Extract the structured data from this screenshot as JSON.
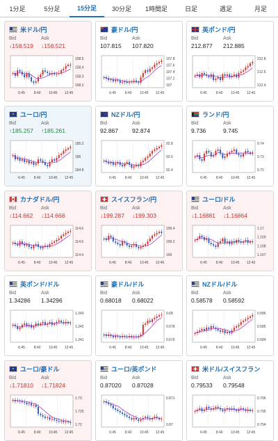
{
  "tabs": [
    "1分足",
    "5分足",
    "15分足",
    "30分足",
    "1時間足",
    "日足",
    "週足",
    "月足"
  ],
  "active_tab": 2,
  "quote_labels": {
    "bid": "Bid",
    "ask": "Ask"
  },
  "x_ticks": [
    "6:45",
    "8:40",
    "10:45",
    "12:45"
  ],
  "colors": {
    "rise": "#d0312d",
    "fall": "#2f5fb8",
    "avg": "#a13ec4",
    "up_text": "#208a39",
    "down_text": "#c8322f"
  },
  "cards": [
    {
      "pair": "米ドル/円",
      "flag": "us",
      "dir": "down",
      "bid": "↓158.519",
      "ask": "↓158.521",
      "yticks": [
        "158.5",
        "158.4",
        "158.3",
        "158.2"
      ],
      "shape": [
        0.45,
        0.35,
        0.55,
        0.5,
        0.4,
        0.3,
        0.45,
        0.3,
        0.15,
        0.1,
        0.15,
        0.3,
        0.4,
        0.55,
        0.5,
        0.45,
        0.4,
        0.45,
        0.4,
        0.42,
        0.45,
        0.55,
        0.6,
        0.7,
        0.75,
        0.72
      ]
    },
    {
      "pair": "豪ドル/円",
      "flag": "au",
      "dir": "none",
      "bid": "107.815",
      "ask": "107.820",
      "yticks": [
        "107.8",
        "107.6",
        "107.4",
        "107.2",
        "107"
      ],
      "shape": [
        0.3,
        0.25,
        0.2,
        0.22,
        0.15,
        0.2,
        0.18,
        0.1,
        0.12,
        0.15,
        0.1,
        0.12,
        0.15,
        0.18,
        0.12,
        0.1,
        0.3,
        0.45,
        0.55,
        0.5,
        0.6,
        0.65,
        0.75,
        0.8,
        0.85,
        0.9
      ]
    },
    {
      "pair": "英ポンド/円",
      "flag": "uk",
      "dir": "none",
      "bid": "212.877",
      "ask": "212.885",
      "yticks": [
        "212.8",
        "212.6",
        "212.4"
      ],
      "shape": [
        0.35,
        0.4,
        0.3,
        0.45,
        0.4,
        0.35,
        0.3,
        0.4,
        0.2,
        0.25,
        0.3,
        0.2,
        0.4,
        0.35,
        0.4,
        0.3,
        0.35,
        0.4,
        0.3,
        0.45,
        0.5,
        0.55,
        0.65,
        0.7,
        0.8,
        0.85
      ]
    },
    {
      "pair": "ユーロ/円",
      "flag": "eu",
      "dir": "up",
      "bid": "↑185.257",
      "ask": "↑185.261",
      "yticks": [
        "185.2",
        "185",
        "184.8"
      ],
      "shape": [
        0.55,
        0.4,
        0.45,
        0.35,
        0.4,
        0.3,
        0.35,
        0.25,
        0.3,
        0.2,
        0.25,
        0.4,
        0.35,
        0.3,
        0.2,
        0.15,
        0.3,
        0.4,
        0.35,
        0.45,
        0.55,
        0.6,
        0.7,
        0.75,
        0.8,
        0.85
      ]
    },
    {
      "pair": "NZドル/円",
      "flag": "nz",
      "dir": "none",
      "bid": "92.867",
      "ask": "92.874",
      "yticks": [
        "92.8",
        "92.6",
        "92.4"
      ],
      "shape": [
        0.35,
        0.3,
        0.25,
        0.3,
        0.2,
        0.25,
        0.3,
        0.2,
        0.15,
        0.25,
        0.3,
        0.2,
        0.1,
        0.15,
        0.2,
        0.15,
        0.3,
        0.35,
        0.45,
        0.5,
        0.6,
        0.7,
        0.75,
        0.8,
        0.85,
        0.9
      ]
    },
    {
      "pair": "ランド/円",
      "flag": "za",
      "dir": "none",
      "bid": "9.736",
      "ask": "9.745",
      "yticks": [
        "9.74",
        "9.73",
        "9.72"
      ],
      "shape": [
        0.5,
        0.55,
        0.4,
        0.35,
        0.6,
        0.7,
        0.65,
        0.5,
        0.55,
        0.7,
        0.75,
        0.6,
        0.45,
        0.5,
        0.6,
        0.65,
        0.7,
        0.75,
        0.6,
        0.55,
        0.5,
        0.6,
        0.7,
        0.65,
        0.6,
        0.65
      ]
    },
    {
      "pair": "カナダドル/円",
      "flag": "ca",
      "dir": "down",
      "bid": "↓114.662",
      "ask": "↓114.668",
      "yticks": [
        "114.6",
        "114.5",
        "114.4"
      ],
      "shape": [
        0.45,
        0.4,
        0.35,
        0.5,
        0.4,
        0.35,
        0.4,
        0.3,
        0.25,
        0.35,
        0.4,
        0.3,
        0.25,
        0.3,
        0.35,
        0.3,
        0.4,
        0.45,
        0.5,
        0.55,
        0.6,
        0.7,
        0.75,
        0.8,
        0.85,
        0.88
      ]
    },
    {
      "pair": "スイスフラン/円",
      "flag": "ch",
      "dir": "down",
      "bid": "↓199.287",
      "ask": "↓199.303",
      "yticks": [
        "199.4",
        "199.2",
        "199"
      ],
      "shape": [
        0.6,
        0.55,
        0.7,
        0.65,
        0.5,
        0.45,
        0.4,
        0.35,
        0.5,
        0.45,
        0.35,
        0.3,
        0.35,
        0.4,
        0.3,
        0.25,
        0.3,
        0.35,
        0.4,
        0.5,
        0.6,
        0.7,
        0.75,
        0.8,
        0.85,
        0.8
      ]
    },
    {
      "pair": "ユーロ/ドル",
      "flag": "us",
      "dir": "down",
      "bid": "↓1.16881",
      "ask": "↓1.16864",
      "yticks": [
        "1.17",
        "1.169",
        "1.168",
        "1.167"
      ],
      "shape": [
        0.55,
        0.6,
        0.7,
        0.65,
        0.55,
        0.6,
        0.45,
        0.4,
        0.35,
        0.3,
        0.45,
        0.5,
        0.6,
        0.45,
        0.5,
        0.4,
        0.5,
        0.45,
        0.55,
        0.5,
        0.45,
        0.5,
        0.55,
        0.45,
        0.5,
        0.48
      ]
    },
    {
      "pair": "英ポンド/ドル",
      "flag": "us",
      "dir": "none",
      "bid": "1.34286",
      "ask": "1.34296",
      "yticks": [
        "1.343",
        "1.342",
        "1.341"
      ],
      "shape": [
        0.55,
        0.5,
        0.4,
        0.45,
        0.55,
        0.6,
        0.5,
        0.55,
        0.45,
        0.5,
        0.6,
        0.55,
        0.6,
        0.65,
        0.55,
        0.6,
        0.65,
        0.55,
        0.6,
        0.65,
        0.7,
        0.65,
        0.6,
        0.65,
        0.6,
        0.62
      ]
    },
    {
      "pair": "豪ドル/ドル",
      "flag": "us",
      "dir": "none",
      "bid": "0.68018",
      "ask": "0.68022",
      "yticks": [
        "0.68",
        "0.678",
        "0.676"
      ],
      "shape": [
        0.2,
        0.15,
        0.2,
        0.15,
        0.1,
        0.15,
        0.12,
        0.1,
        0.15,
        0.12,
        0.1,
        0.15,
        0.1,
        0.12,
        0.1,
        0.15,
        0.2,
        0.55,
        0.6,
        0.7,
        0.65,
        0.75,
        0.8,
        0.85,
        0.9,
        0.92
      ]
    },
    {
      "pair": "NZドル/ドル",
      "flag": "us",
      "dir": "none",
      "bid": "0.58578",
      "ask": "0.58592",
      "yticks": [
        "0.586",
        "0.585",
        "0.584"
      ],
      "shape": [
        0.25,
        0.3,
        0.35,
        0.4,
        0.35,
        0.45,
        0.4,
        0.5,
        0.45,
        0.4,
        0.35,
        0.3,
        0.35,
        0.25,
        0.3,
        0.25,
        0.35,
        0.45,
        0.5,
        0.55,
        0.65,
        0.7,
        0.75,
        0.8,
        0.85,
        0.9
      ]
    },
    {
      "pair": "ユーロ/豪ドル",
      "flag": "eu",
      "dir": "down",
      "bid": "↓1.71810",
      "ask": "↓1.71824",
      "yticks": [
        "1.73",
        "1.725",
        "1.72"
      ],
      "shape": [
        0.9,
        0.85,
        0.88,
        0.85,
        0.82,
        0.8,
        0.75,
        0.78,
        0.7,
        0.72,
        0.65,
        0.4,
        0.35,
        0.3,
        0.25,
        0.28,
        0.2,
        0.22,
        0.18,
        0.15,
        0.12,
        0.15,
        0.1,
        0.12,
        0.1,
        0.08
      ]
    },
    {
      "pair": "ユーロ/英ポンド",
      "flag": "us",
      "dir": "none",
      "bid": "0.87020",
      "ask": "0.87028",
      "yticks": [
        "0.871",
        "0.87"
      ],
      "shape": [
        0.85,
        0.8,
        0.75,
        0.7,
        0.6,
        0.55,
        0.5,
        0.45,
        0.4,
        0.35,
        0.3,
        0.25,
        0.2,
        0.25,
        0.2,
        0.15,
        0.2,
        0.25,
        0.3,
        0.25,
        0.2,
        0.25,
        0.3,
        0.25,
        0.2,
        0.22
      ]
    },
    {
      "pair": "米ドル/スイスフラン",
      "flag": "ch",
      "dir": "none",
      "bid": "0.79533",
      "ask": "0.79548",
      "yticks": [
        "0.796",
        "0.795",
        "0.794"
      ],
      "shape": [
        0.5,
        0.55,
        0.6,
        0.5,
        0.55,
        0.65,
        0.6,
        0.55,
        0.6,
        0.65,
        0.6,
        0.55,
        0.5,
        0.55,
        0.6,
        0.55,
        0.6,
        0.55,
        0.5,
        0.55,
        0.6,
        0.55,
        0.5,
        0.55,
        0.5,
        0.52
      ]
    }
  ]
}
